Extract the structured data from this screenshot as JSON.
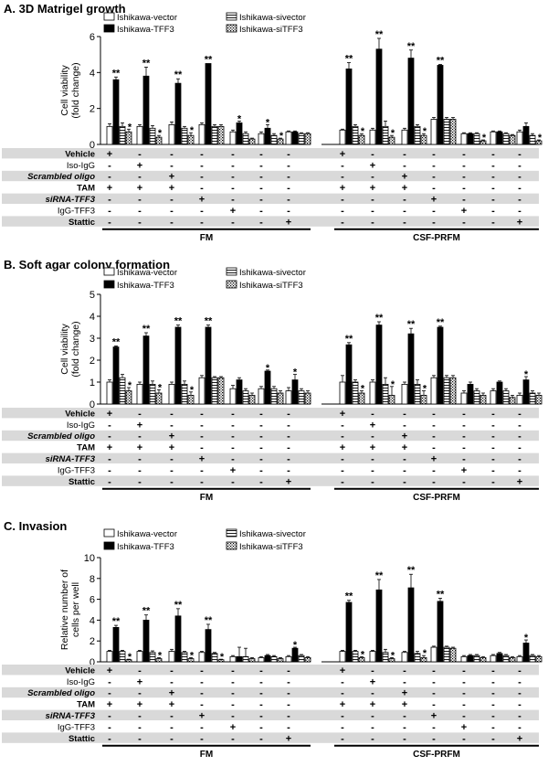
{
  "legend": [
    "Ishikawa-vector",
    "Ishikawa-TFF3",
    "Ishikawa-sivector",
    "Ishikawa-siTFF3"
  ],
  "colors": {
    "vector": "#ffffff",
    "tff3": "#000000",
    "sivector": "#ffffff",
    "sitff3": "#ffffff",
    "row_shade": "#d9d9d9"
  },
  "row_labels": [
    "Vehicle",
    "Iso-IgG",
    "Scrambled oligo",
    "TAM",
    "siRNA-TFF3",
    "IgG-TFF3",
    "Stattic"
  ],
  "groups": [
    "FM",
    "CSF-PRFM"
  ],
  "treatment_marks": [
    [
      "+",
      "-",
      "-",
      "-",
      "-",
      "-",
      "-"
    ],
    [
      "-",
      "+",
      "-",
      "-",
      "-",
      "-",
      "-"
    ],
    [
      "-",
      "-",
      "+",
      "-",
      "-",
      "-",
      "-"
    ],
    [
      "+",
      "+",
      "+",
      "-",
      "-",
      "-",
      "-"
    ],
    [
      "-",
      "-",
      "-",
      "+",
      "-",
      "-",
      "-"
    ],
    [
      "-",
      "-",
      "-",
      "-",
      "+",
      "-",
      "-"
    ],
    [
      "-",
      "-",
      "-",
      "-",
      "-",
      "-",
      "+"
    ]
  ],
  "chart_data": [
    {
      "type": "bar",
      "panel": "A. 3D Matrigel growth",
      "ylabel": [
        "Cell viability",
        "(fold change)"
      ],
      "ylim": [
        0,
        6
      ],
      "yticks": [
        "0",
        "2",
        "4",
        "6"
      ],
      "series_names": [
        "Ishikawa-vector",
        "Ishikawa-TFF3",
        "Ishikawa-sivector",
        "Ishikawa-siTFF3"
      ],
      "values": [
        [
          [
            1.0,
            3.6,
            1.0,
            0.7
          ],
          [
            1.0,
            3.8,
            0.9,
            0.4
          ],
          [
            1.1,
            3.4,
            0.9,
            0.5
          ],
          [
            1.1,
            4.5,
            1.0,
            1.0
          ],
          [
            0.7,
            1.2,
            0.6,
            0.3
          ],
          [
            0.6,
            0.9,
            0.5,
            0.3
          ],
          [
            0.7,
            0.7,
            0.6,
            0.6
          ]
        ],
        [
          [
            0.8,
            4.2,
            1.0,
            0.5
          ],
          [
            0.8,
            5.3,
            1.0,
            0.4
          ],
          [
            0.8,
            4.8,
            1.0,
            0.5
          ],
          [
            1.4,
            4.4,
            1.4,
            1.4
          ],
          [
            0.6,
            0.6,
            0.6,
            0.2
          ],
          [
            0.7,
            0.7,
            0.6,
            0.5
          ],
          [
            0.7,
            1.0,
            0.5,
            0.2
          ]
        ]
      ],
      "errors": [
        [
          [
            0.15,
            0.15,
            0.2,
            0.15
          ],
          [
            0.1,
            0.5,
            0.15,
            0.1
          ],
          [
            0.15,
            0.25,
            0.1,
            0.15
          ],
          [
            0.1,
            0.0,
            0.1,
            0.1
          ],
          [
            0.1,
            0.1,
            0.1,
            0.05
          ],
          [
            0.1,
            0.2,
            0.1,
            0.05
          ],
          [
            0.05,
            0.05,
            0.05,
            0.05
          ]
        ],
        [
          [
            0.05,
            0.35,
            0.1,
            0.1
          ],
          [
            0.1,
            0.6,
            0.3,
            0.1
          ],
          [
            0.1,
            0.45,
            0.1,
            0.1
          ],
          [
            0.1,
            0.05,
            0.1,
            0.1
          ],
          [
            0.05,
            0.05,
            0.05,
            0.05
          ],
          [
            0.05,
            0.05,
            0.05,
            0.05
          ],
          [
            0.1,
            0.2,
            0.1,
            0.05
          ]
        ]
      ],
      "sig": [
        [
          [
            "",
            "**",
            "",
            "*"
          ],
          [
            "",
            "**",
            "",
            "*"
          ],
          [
            "",
            "**",
            "",
            "*"
          ],
          [
            "",
            "**",
            "",
            ""
          ],
          [
            "",
            "*",
            "",
            ""
          ],
          [
            "",
            "*",
            "",
            "*"
          ],
          [
            "",
            "",
            "",
            ""
          ]
        ],
        [
          [
            "",
            "**",
            "",
            "*"
          ],
          [
            "",
            "**",
            "",
            "*"
          ],
          [
            "",
            "**",
            "",
            "*"
          ],
          [
            "",
            "**",
            "",
            ""
          ],
          [
            "",
            "",
            "",
            "*"
          ],
          [
            "",
            "",
            "",
            ""
          ],
          [
            "",
            "",
            "",
            "*"
          ]
        ]
      ]
    },
    {
      "type": "bar",
      "panel": "B. Soft agar colony formation",
      "ylabel": [
        "Cell viability",
        "(fold change)"
      ],
      "ylim": [
        0,
        5
      ],
      "yticks": [
        "0",
        "1",
        "2",
        "3",
        "4",
        "5"
      ],
      "series_names": [
        "Ishikawa-vector",
        "Ishikawa-TFF3",
        "Ishikawa-sivector",
        "Ishikawa-siTFF3"
      ],
      "values": [
        [
          [
            1.0,
            2.6,
            1.2,
            0.6
          ],
          [
            0.9,
            3.1,
            0.9,
            0.5
          ],
          [
            0.9,
            3.5,
            0.9,
            0.4
          ],
          [
            1.2,
            3.5,
            1.2,
            1.2
          ],
          [
            0.7,
            1.1,
            0.6,
            0.4
          ],
          [
            0.7,
            1.5,
            0.7,
            0.5
          ],
          [
            0.6,
            1.1,
            0.6,
            0.5
          ]
        ],
        [
          [
            1.0,
            2.7,
            1.0,
            0.5
          ],
          [
            1.0,
            3.6,
            0.9,
            0.4
          ],
          [
            0.9,
            3.2,
            0.9,
            0.4
          ],
          [
            1.2,
            3.5,
            1.2,
            1.2
          ],
          [
            0.5,
            0.9,
            0.6,
            0.4
          ],
          [
            0.6,
            1.0,
            0.6,
            0.3
          ],
          [
            0.4,
            1.1,
            0.5,
            0.4
          ]
        ]
      ],
      "errors": [
        [
          [
            0.1,
            0.05,
            0.15,
            0.15
          ],
          [
            0.1,
            0.15,
            0.15,
            0.15
          ],
          [
            0.1,
            0.1,
            0.15,
            0.15
          ],
          [
            0.1,
            0.1,
            0.05,
            0.05
          ],
          [
            0.15,
            0.1,
            0.1,
            0.1
          ],
          [
            0.1,
            0.05,
            0.1,
            0.1
          ],
          [
            0.15,
            0.25,
            0.1,
            0.1
          ]
        ],
        [
          [
            0.3,
            0.1,
            0.1,
            0.1
          ],
          [
            0.1,
            0.15,
            0.3,
            0.4
          ],
          [
            0.1,
            0.25,
            0.2,
            0.2
          ],
          [
            0.1,
            0.05,
            0.1,
            0.1
          ],
          [
            0.1,
            0.1,
            0.1,
            0.1
          ],
          [
            0.1,
            0.05,
            0.1,
            0.1
          ],
          [
            0.1,
            0.15,
            0.1,
            0.1
          ]
        ]
      ],
      "sig": [
        [
          [
            "",
            "**",
            "",
            "*"
          ],
          [
            "",
            "**",
            "",
            "*"
          ],
          [
            "",
            "**",
            "",
            "*"
          ],
          [
            "",
            "**",
            "",
            ""
          ],
          [
            "",
            "",
            "",
            ""
          ],
          [
            "",
            "*",
            "",
            ""
          ],
          [
            "",
            "*",
            "",
            ""
          ]
        ],
        [
          [
            "",
            "**",
            "",
            "*"
          ],
          [
            "",
            "**",
            "",
            "*"
          ],
          [
            "",
            "**",
            "",
            "*"
          ],
          [
            "",
            "**",
            "",
            ""
          ],
          [
            "",
            "",
            "",
            ""
          ],
          [
            "",
            "",
            "",
            ""
          ],
          [
            "",
            "*",
            "",
            ""
          ]
        ]
      ]
    },
    {
      "type": "bar",
      "panel": "C. Invasion",
      "ylabel": [
        "Relative number of",
        "cells per well"
      ],
      "ylim": [
        0,
        10
      ],
      "yticks": [
        "0",
        "2",
        "4",
        "6",
        "8",
        "10"
      ],
      "series_names": [
        "Ishikawa-vector",
        "Ishikawa-TFF3",
        "Ishikawa-sivector",
        "Ishikawa-siTFF3"
      ],
      "values": [
        [
          [
            1.0,
            3.3,
            1.0,
            0.2
          ],
          [
            1.0,
            4.0,
            0.9,
            0.3
          ],
          [
            1.0,
            4.4,
            0.9,
            0.3
          ],
          [
            0.9,
            3.1,
            0.8,
            0.2
          ],
          [
            0.5,
            0.5,
            0.5,
            0.3
          ],
          [
            0.4,
            0.6,
            0.5,
            0.3
          ],
          [
            0.5,
            1.3,
            0.6,
            0.4
          ]
        ],
        [
          [
            1.0,
            5.7,
            1.0,
            0.4
          ],
          [
            1.0,
            6.9,
            0.9,
            0.3
          ],
          [
            0.9,
            7.1,
            0.8,
            0.4
          ],
          [
            1.4,
            5.8,
            1.4,
            1.3
          ],
          [
            0.5,
            0.6,
            0.6,
            0.4
          ],
          [
            0.6,
            0.8,
            0.6,
            0.4
          ],
          [
            0.5,
            1.8,
            0.6,
            0.5
          ]
        ]
      ],
      "errors": [
        [
          [
            0.1,
            0.2,
            0.1,
            0.05
          ],
          [
            0.1,
            0.5,
            0.15,
            0.1
          ],
          [
            0.2,
            0.7,
            0.1,
            0.1
          ],
          [
            0.1,
            0.5,
            0.1,
            0.05
          ],
          [
            0.1,
            0.9,
            0.8,
            0.1
          ],
          [
            0.1,
            0.1,
            0.1,
            0.1
          ],
          [
            0.1,
            0.1,
            0.1,
            0.1
          ]
        ],
        [
          [
            0.1,
            0.2,
            0.1,
            0.1
          ],
          [
            0.1,
            1.0,
            0.3,
            0.1
          ],
          [
            0.1,
            1.3,
            0.2,
            0.2
          ],
          [
            0.1,
            0.3,
            0.1,
            0.1
          ],
          [
            0.1,
            0.1,
            0.1,
            0.1
          ],
          [
            0.1,
            0.1,
            0.1,
            0.1
          ],
          [
            0.1,
            0.3,
            0.1,
            0.1
          ]
        ]
      ],
      "sig": [
        [
          [
            "",
            "**",
            "",
            "*"
          ],
          [
            "",
            "**",
            "",
            "*"
          ],
          [
            "",
            "**",
            "",
            "*"
          ],
          [
            "",
            "**",
            "",
            "*"
          ],
          [
            "",
            "",
            "",
            ""
          ],
          [
            "",
            "",
            "",
            ""
          ],
          [
            "",
            "*",
            "",
            ""
          ]
        ],
        [
          [
            "",
            "**",
            "",
            "*"
          ],
          [
            "",
            "**",
            "",
            "*"
          ],
          [
            "",
            "**",
            "",
            "*"
          ],
          [
            "",
            "**",
            "",
            ""
          ],
          [
            "",
            "",
            "",
            ""
          ],
          [
            "",
            "",
            "",
            ""
          ],
          [
            "",
            "*",
            "",
            ""
          ]
        ]
      ]
    }
  ]
}
